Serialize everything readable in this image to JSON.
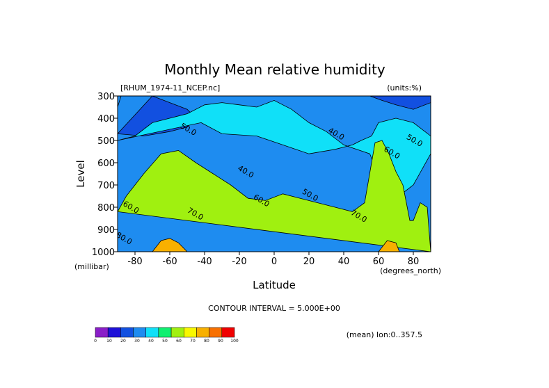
{
  "chart_data": {
    "type": "contour",
    "title": "Monthly Mean relative humidity",
    "source_label": "[RHUM_1974-11_NCEP.nc]",
    "units_label": "(units:%)",
    "ylabel": "Level",
    "y_unit_label": "(millibar)",
    "xlabel": "Latitude",
    "x_unit_label": "(degrees_north)",
    "contour_interval_label": "CONTOUR INTERVAL = 5.000E+00",
    "mean_label": "(mean) lon:0..357.5",
    "xlim": [
      -90,
      90
    ],
    "ylim": [
      1000,
      300
    ],
    "x_ticks": [
      -80,
      -60,
      -40,
      -20,
      0,
      20,
      40,
      60,
      80
    ],
    "y_ticks": [
      300,
      400,
      500,
      600,
      700,
      800,
      900,
      1000
    ],
    "x_tick_labels": [
      "-80",
      "-60",
      "-40",
      "-20",
      "0",
      "20",
      "40",
      "60",
      "80"
    ],
    "y_tick_labels": [
      "300",
      "400",
      "500",
      "600",
      "700",
      "800",
      "900",
      "1000"
    ],
    "contour_labels": [
      {
        "text": "50.0",
        "lat": -50,
        "level": 460
      },
      {
        "text": "40.0",
        "lat": 35,
        "level": 480
      },
      {
        "text": "60.0",
        "lat": 67,
        "level": 565
      },
      {
        "text": "50.0",
        "lat": 80,
        "level": 510
      },
      {
        "text": "40.0",
        "lat": -17,
        "level": 650
      },
      {
        "text": "50.0",
        "lat": 20,
        "level": 755
      },
      {
        "text": "60.0",
        "lat": -8,
        "level": 780
      },
      {
        "text": "60.0",
        "lat": -83,
        "level": 810
      },
      {
        "text": "70.0",
        "lat": -46,
        "level": 840
      },
      {
        "text": "70.0",
        "lat": 48,
        "level": 850
      },
      {
        "text": "80.0",
        "lat": -87,
        "level": 950
      }
    ],
    "colorbar": {
      "levels": [
        "0",
        "10",
        "20",
        "30",
        "40",
        "50",
        "60",
        "70",
        "80",
        "90",
        "100"
      ],
      "colors": [
        "#8a1ec8",
        "#1e10d8",
        "#1250e0",
        "#1e8cf0",
        "#10e0f8",
        "#10f070",
        "#a0f010",
        "#f8f800",
        "#f8b000",
        "#f87000",
        "#f00000"
      ]
    },
    "regions": [
      {
        "level": 10,
        "lat": [
          -88,
          -90
        ],
        "pres": [
          300,
          350
        ]
      },
      {
        "level": 20,
        "lat": [
          -70,
          -60,
          -50,
          -45,
          -50,
          -60,
          -75,
          -90
        ],
        "pres": [
          300,
          330,
          360,
          400,
          440,
          460,
          480,
          470
        ]
      },
      {
        "level": 20,
        "lat": [
          55,
          62,
          70,
          80,
          90,
          90
        ],
        "pres": [
          300,
          320,
          340,
          360,
          330,
          300
        ]
      },
      {
        "level": 40,
        "lat": [
          -42,
          -30,
          -10,
          5,
          20,
          35,
          45,
          50,
          56,
          60,
          70,
          80,
          90,
          90,
          80,
          70,
          62,
          55,
          40,
          30,
          20,
          10,
          0,
          -10,
          -20,
          -30,
          -40,
          -50,
          -60,
          -70,
          -80,
          -90
        ],
        "pres": [
          420,
          470,
          480,
          520,
          560,
          540,
          520,
          500,
          480,
          420,
          400,
          420,
          480,
          560,
          700,
          760,
          700,
          560,
          520,
          460,
          420,
          360,
          320,
          350,
          340,
          330,
          340,
          380,
          400,
          420,
          480,
          500
        ]
      },
      {
        "level": 60,
        "lat": [
          -90,
          -85,
          -75,
          -65,
          -55,
          -45,
          -35,
          -25,
          -15,
          -5,
          5,
          15,
          25,
          35,
          45,
          52,
          58,
          62,
          66,
          70,
          74,
          78,
          80,
          84,
          88,
          90,
          90
        ],
        "pres": [
          820,
          750,
          650,
          560,
          545,
          600,
          650,
          700,
          760,
          770,
          740,
          760,
          780,
          800,
          820,
          780,
          510,
          500,
          560,
          640,
          700,
          860,
          860,
          780,
          800,
          1000,
          1000
        ]
      },
      {
        "level": 80,
        "lat": [
          -70,
          -65,
          -60,
          -55,
          -50,
          -70
        ],
        "pres": [
          1000,
          950,
          940,
          960,
          1000,
          1000
        ]
      },
      {
        "level": 80,
        "lat": [
          60,
          65,
          70,
          72,
          60
        ],
        "pres": [
          1000,
          950,
          960,
          1000,
          1000
        ]
      }
    ]
  }
}
